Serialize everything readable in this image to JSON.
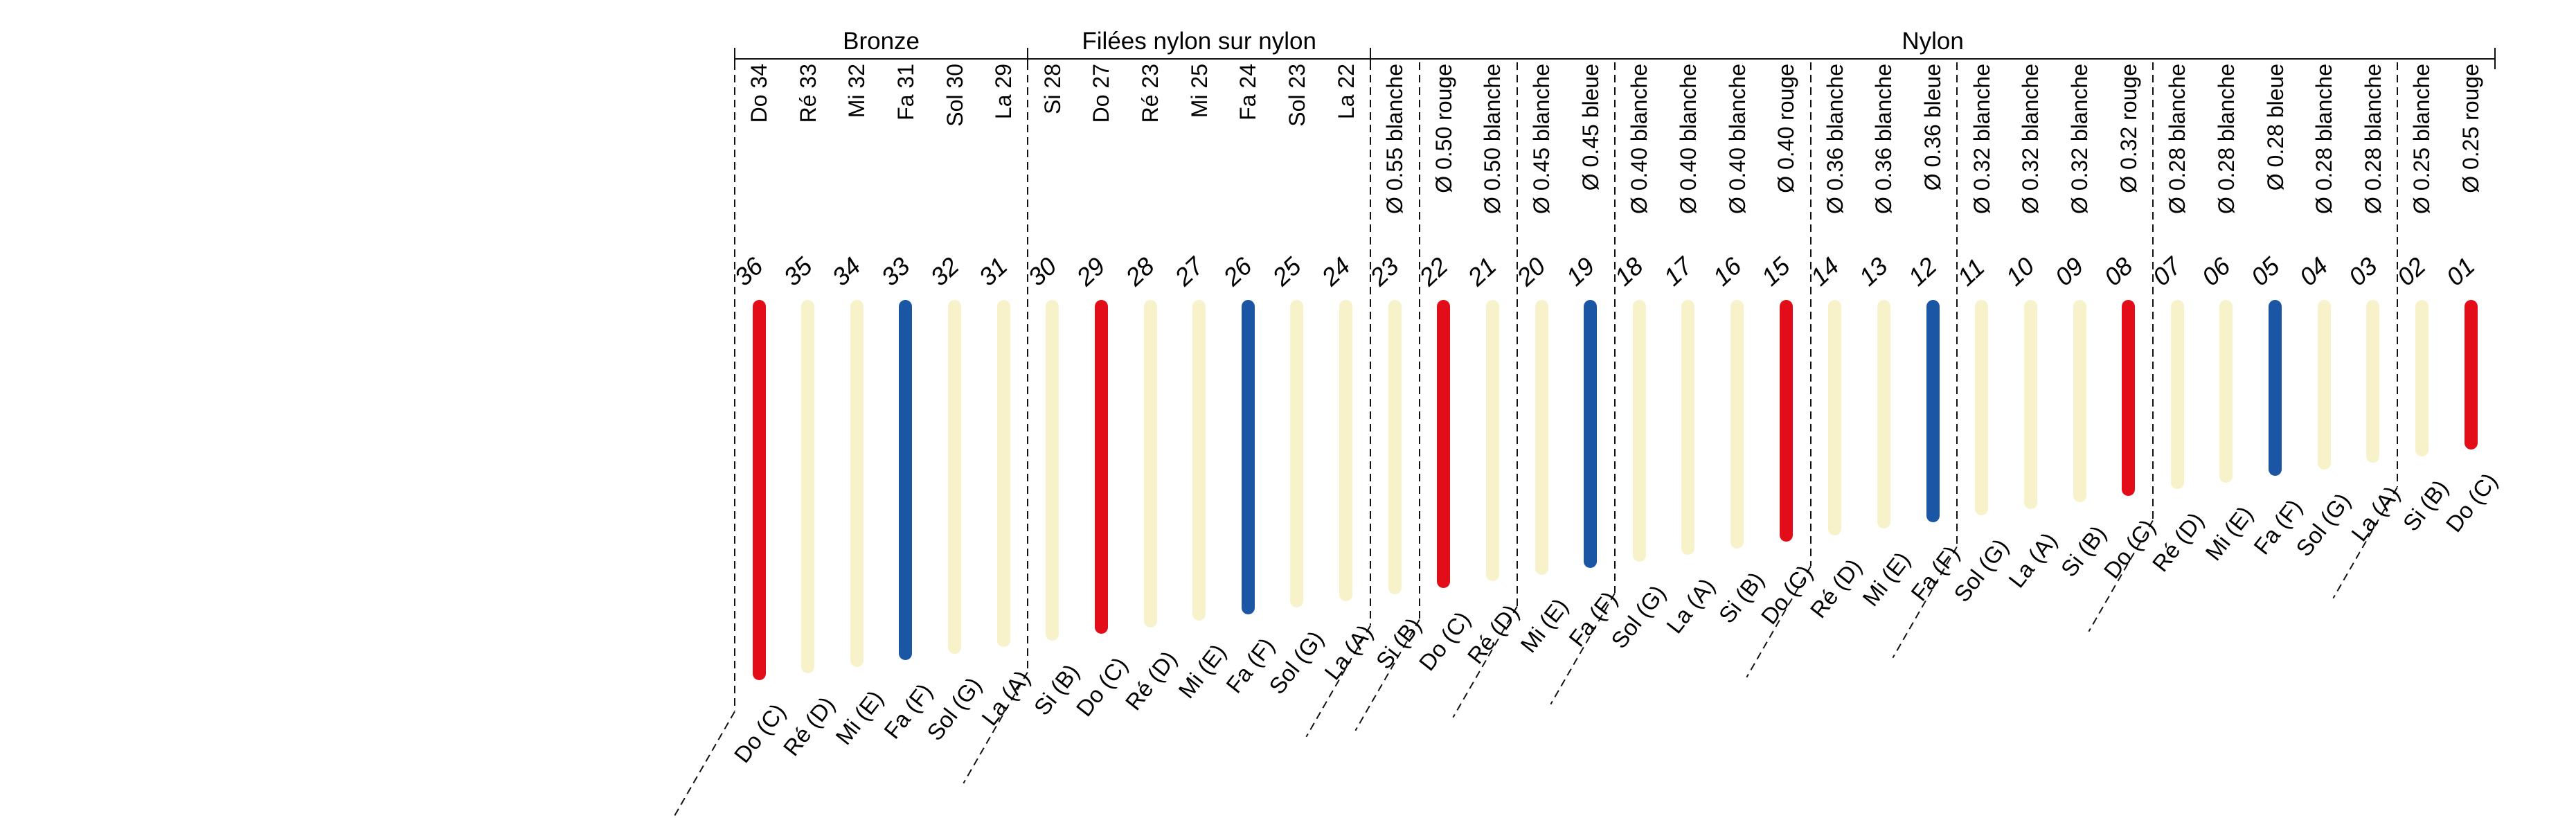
{
  "groups": [
    {
      "label": "Bronze",
      "strings": [
        "36",
        "35",
        "34",
        "33",
        "32",
        "31"
      ]
    },
    {
      "label": "Filées nylon sur nylon",
      "strings": [
        "30",
        "29",
        "28",
        "27",
        "26",
        "25",
        "24"
      ]
    },
    {
      "label": "Nylon",
      "strings": [
        "23",
        "22",
        "21",
        "20",
        "19",
        "18",
        "17",
        "16",
        "15",
        "14",
        "13",
        "12",
        "11",
        "10",
        "09",
        "08",
        "07",
        "06",
        "05",
        "04",
        "03",
        "02",
        "01"
      ]
    }
  ],
  "strings": [
    {
      "num": "36",
      "top_label": "Do 34",
      "note_label": "Do (C)",
      "string_color": "rouge"
    },
    {
      "num": "35",
      "top_label": "Ré 33",
      "note_label": "Ré (D)",
      "string_color": "blanche"
    },
    {
      "num": "34",
      "top_label": "Mi 32",
      "note_label": "Mi (E)",
      "string_color": "blanche"
    },
    {
      "num": "33",
      "top_label": "Fa 31",
      "note_label": "Fa (F)",
      "string_color": "bleue"
    },
    {
      "num": "32",
      "top_label": "Sol 30",
      "note_label": "Sol (G)",
      "string_color": "blanche"
    },
    {
      "num": "31",
      "top_label": "La 29",
      "note_label": "La (A)",
      "string_color": "blanche"
    },
    {
      "num": "30",
      "top_label": "Si 28",
      "note_label": "Si (B)",
      "string_color": "blanche"
    },
    {
      "num": "29",
      "top_label": "Do 27",
      "note_label": "Do (C)",
      "string_color": "rouge"
    },
    {
      "num": "28",
      "top_label": "Ré 23",
      "note_label": "Ré (D)",
      "string_color": "blanche"
    },
    {
      "num": "27",
      "top_label": "Mi 25",
      "note_label": "Mi (E)",
      "string_color": "blanche"
    },
    {
      "num": "26",
      "top_label": "Fa 24",
      "note_label": "Fa (F)",
      "string_color": "bleue"
    },
    {
      "num": "25",
      "top_label": "Sol 23",
      "note_label": "Sol (G)",
      "string_color": "blanche"
    },
    {
      "num": "24",
      "top_label": "La 22",
      "note_label": "La (A)",
      "string_color": "blanche"
    },
    {
      "num": "23",
      "top_label": "Ø 0.55 blanche",
      "note_label": "Si (B)",
      "string_color": "blanche"
    },
    {
      "num": "22",
      "top_label": "Ø 0.50 rouge",
      "note_label": "Do (C)",
      "string_color": "rouge"
    },
    {
      "num": "21",
      "top_label": "Ø 0.50 blanche",
      "note_label": "Ré (D)",
      "string_color": "blanche"
    },
    {
      "num": "20",
      "top_label": "Ø 0.45 blanche",
      "note_label": "Mi (E)",
      "string_color": "blanche"
    },
    {
      "num": "19",
      "top_label": "Ø 0.45 bleue",
      "note_label": "Fa (F)",
      "string_color": "bleue"
    },
    {
      "num": "18",
      "top_label": "Ø 0.40 blanche",
      "note_label": "Sol (G)",
      "string_color": "blanche"
    },
    {
      "num": "17",
      "top_label": "Ø 0.40 blanche",
      "note_label": "La (A)",
      "string_color": "blanche"
    },
    {
      "num": "16",
      "top_label": "Ø 0.40 blanche",
      "note_label": "Si (B)",
      "string_color": "blanche"
    },
    {
      "num": "15",
      "top_label": "Ø 0.40 rouge",
      "note_label": "Do (C)",
      "string_color": "rouge"
    },
    {
      "num": "14",
      "top_label": "Ø 0.36 blanche",
      "note_label": "Ré (D)",
      "string_color": "blanche"
    },
    {
      "num": "13",
      "top_label": "Ø 0.36 blanche",
      "note_label": "Mi (E)",
      "string_color": "blanche"
    },
    {
      "num": "12",
      "top_label": "Ø 0.36 bleue",
      "note_label": "Fa (F)",
      "string_color": "bleue"
    },
    {
      "num": "11",
      "top_label": "Ø 0.32 blanche",
      "note_label": "Sol (G)",
      "string_color": "blanche"
    },
    {
      "num": "10",
      "top_label": "Ø 0.32 blanche",
      "note_label": "La (A)",
      "string_color": "blanche"
    },
    {
      "num": "09",
      "top_label": "Ø 0.32 blanche",
      "note_label": "Si (B)",
      "string_color": "blanche"
    },
    {
      "num": "08",
      "top_label": "Ø 0.32 rouge",
      "note_label": "Do (C)",
      "string_color": "rouge"
    },
    {
      "num": "07",
      "top_label": "Ø 0.28 blanche",
      "note_label": "Ré (D)",
      "string_color": "blanche"
    },
    {
      "num": "06",
      "top_label": "Ø 0.28 blanche",
      "note_label": "Mi (E)",
      "string_color": "blanche"
    },
    {
      "num": "05",
      "top_label": "Ø 0.28 bleue",
      "note_label": "Fa (F)",
      "string_color": "bleue"
    },
    {
      "num": "04",
      "top_label": "Ø 0.28 blanche",
      "note_label": "Sol (G)",
      "string_color": "blanche"
    },
    {
      "num": "03",
      "top_label": "Ø 0.28 blanche",
      "note_label": "La (A)",
      "string_color": "blanche"
    },
    {
      "num": "02",
      "top_label": "Ø 0.25 blanche",
      "note_label": "Si (B)",
      "string_color": "blanche"
    },
    {
      "num": "01",
      "top_label": "Ø 0.25 rouge",
      "note_label": "Do (C)",
      "string_color": "rouge"
    }
  ],
  "separators": {
    "dashed_before": [
      "36",
      "30",
      "23",
      "22",
      "20",
      "18",
      "14",
      "11",
      "07",
      "02"
    ],
    "tick_before": [
      "36",
      "30",
      "23"
    ],
    "right_end_tick": true
  },
  "colors": {
    "rouge": "#e20d18",
    "bleue": "#1b56a4",
    "blanche": "#f7f2ca",
    "ink": "#111111"
  }
}
